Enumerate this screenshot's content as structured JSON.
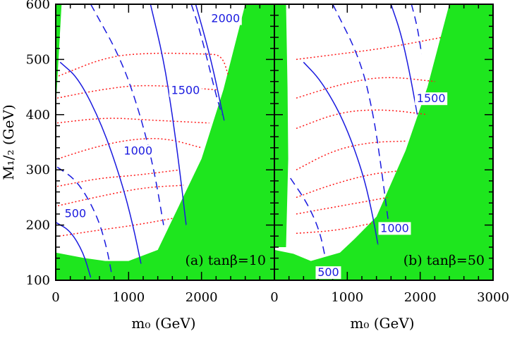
{
  "chart_data": [
    {
      "type": "contour",
      "panel_label": "(a) tanβ=10",
      "xlabel": "m₀ (GeV)",
      "ylabel": "M₁/₂ (GeV)",
      "xlim": [
        0,
        3000
      ],
      "ylim": [
        100,
        600
      ],
      "x_ticks": [
        "0",
        "1000",
        "2000"
      ],
      "y_ticks": [
        "100",
        "200",
        "300",
        "400",
        "500",
        "600"
      ],
      "contour_labels": [
        {
          "text": "500",
          "x": 270,
          "y": 217
        },
        {
          "text": "1000",
          "x": 1130,
          "y": 330
        },
        {
          "text": "1500",
          "x": 1780,
          "y": 440
        },
        {
          "text": "2000",
          "x": 2330,
          "y": 570
        }
      ],
      "solid_contours": [
        [
          [
            0,
            205
          ],
          [
            200,
            190
          ],
          [
            380,
            150
          ],
          [
            480,
            105
          ]
        ],
        [
          [
            60,
            495
          ],
          [
            320,
            465
          ],
          [
            640,
            380
          ],
          [
            900,
            280
          ],
          [
            1060,
            200
          ],
          [
            1170,
            130
          ]
        ],
        [
          [
            1300,
            600
          ],
          [
            1480,
            500
          ],
          [
            1600,
            400
          ],
          [
            1700,
            300
          ],
          [
            1790,
            200
          ]
        ],
        [
          [
            1920,
            600
          ],
          [
            2070,
            530
          ],
          [
            2180,
            470
          ],
          [
            2260,
            420
          ],
          [
            2310,
            390
          ]
        ]
      ],
      "dashed_contours": [
        [
          [
            20,
            305
          ],
          [
            300,
            280
          ],
          [
            560,
            220
          ],
          [
            700,
            160
          ],
          [
            770,
            110
          ]
        ],
        [
          [
            480,
            600
          ],
          [
            900,
            500
          ],
          [
            1160,
            400
          ],
          [
            1350,
            300
          ],
          [
            1480,
            200
          ]
        ],
        [
          [
            1860,
            600
          ],
          [
            1960,
            560
          ],
          [
            2080,
            500
          ],
          [
            2190,
            440
          ],
          [
            2280,
            400
          ]
        ]
      ],
      "dotted_contours": [
        [
          [
            50,
            180
          ],
          [
            550,
            190
          ],
          [
            1100,
            200
          ],
          [
            1600,
            212
          ]
        ],
        [
          [
            30,
            235
          ],
          [
            600,
            252
          ],
          [
            1200,
            268
          ],
          [
            1750,
            272
          ]
        ],
        [
          [
            20,
            270
          ],
          [
            600,
            285
          ],
          [
            1100,
            290
          ],
          [
            1700,
            300
          ]
        ],
        [
          [
            30,
            320
          ],
          [
            500,
            340
          ],
          [
            1000,
            355
          ],
          [
            1500,
            358
          ],
          [
            2000,
            340
          ]
        ],
        [
          [
            20,
            385
          ],
          [
            700,
            395
          ],
          [
            1300,
            390
          ],
          [
            2100,
            385
          ]
        ],
        [
          [
            20,
            430
          ],
          [
            600,
            445
          ],
          [
            1200,
            455
          ],
          [
            2200,
            445
          ]
        ],
        [
          [
            40,
            470
          ],
          [
            700,
            505
          ],
          [
            1300,
            512
          ],
          [
            2050,
            510
          ],
          [
            2280,
            508
          ],
          [
            2370,
            470
          ]
        ]
      ]
    },
    {
      "type": "contour",
      "panel_label": "(b) tanβ=50",
      "xlabel": "m₀ (GeV)",
      "ylabel": "",
      "xlim": [
        0,
        3000
      ],
      "ylim": [
        100,
        600
      ],
      "x_ticks": [
        "0",
        "1000",
        "2000",
        "3000"
      ],
      "y_ticks": [],
      "contour_labels": [
        {
          "text": "1500",
          "x": 2150,
          "y": 425
        },
        {
          "text": "1000",
          "x": 1650,
          "y": 190
        },
        {
          "text": "500",
          "x": 740,
          "y": 110
        }
      ],
      "solid_contours": [
        [
          [
            400,
            495
          ],
          [
            650,
            460
          ],
          [
            950,
            390
          ],
          [
            1200,
            300
          ],
          [
            1330,
            230
          ],
          [
            1420,
            165
          ]
        ],
        [
          [
            1600,
            600
          ],
          [
            1730,
            550
          ],
          [
            1850,
            480
          ],
          [
            1960,
            400
          ]
        ]
      ],
      "dashed_contours": [
        [
          [
            220,
            285
          ],
          [
            450,
            240
          ],
          [
            620,
            190
          ],
          [
            700,
            140
          ]
        ],
        [
          [
            800,
            600
          ],
          [
            1180,
            500
          ],
          [
            1360,
            400
          ],
          [
            1470,
            300
          ],
          [
            1560,
            210
          ]
        ],
        [
          [
            1880,
            600
          ],
          [
            1960,
            560
          ],
          [
            2020,
            510
          ]
        ]
      ],
      "dotted_contours": [
        [
          [
            300,
            185
          ],
          [
            850,
            190
          ],
          [
            1400,
            205
          ]
        ],
        [
          [
            300,
            220
          ],
          [
            800,
            232
          ],
          [
            1350,
            245
          ],
          [
            1550,
            250
          ]
        ],
        [
          [
            300,
            250
          ],
          [
            750,
            272
          ],
          [
            1300,
            292
          ],
          [
            1700,
            298
          ]
        ],
        [
          [
            300,
            300
          ],
          [
            800,
            335
          ],
          [
            1300,
            350
          ],
          [
            1800,
            352
          ]
        ],
        [
          [
            300,
            375
          ],
          [
            900,
            405
          ],
          [
            1500,
            410
          ],
          [
            2100,
            400
          ]
        ],
        [
          [
            300,
            430
          ],
          [
            900,
            455
          ],
          [
            1500,
            470
          ],
          [
            2200,
            460
          ]
        ],
        [
          [
            300,
            500
          ],
          [
            900,
            510
          ],
          [
            1500,
            520
          ],
          [
            2300,
            540
          ]
        ]
      ]
    }
  ],
  "colors": {
    "excluded_region": "#1ee61e",
    "contour_line": "#1a1adf",
    "dotted_line": "#ff1a1a",
    "axis": "#000000"
  }
}
